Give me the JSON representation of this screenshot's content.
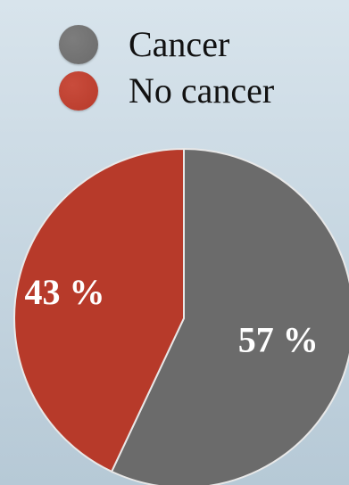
{
  "chart_data": {
    "type": "pie",
    "slices": [
      {
        "label": "Cancer",
        "value": 57,
        "display": "57 %",
        "color": "#6b6b6b"
      },
      {
        "label": "No cancer",
        "value": 43,
        "display": "43 %",
        "color": "#b73a2a"
      }
    ],
    "legend": {
      "placement": "top",
      "entries": [
        "Cancer",
        "No cancer"
      ]
    },
    "start_angle_deg": 0,
    "direction": "clockwise",
    "title": "",
    "grid": false
  },
  "colors": {
    "background_top": "#d8e4ec",
    "background_bottom": "#b6c9d6",
    "slice_border": "#e8e8e8"
  }
}
